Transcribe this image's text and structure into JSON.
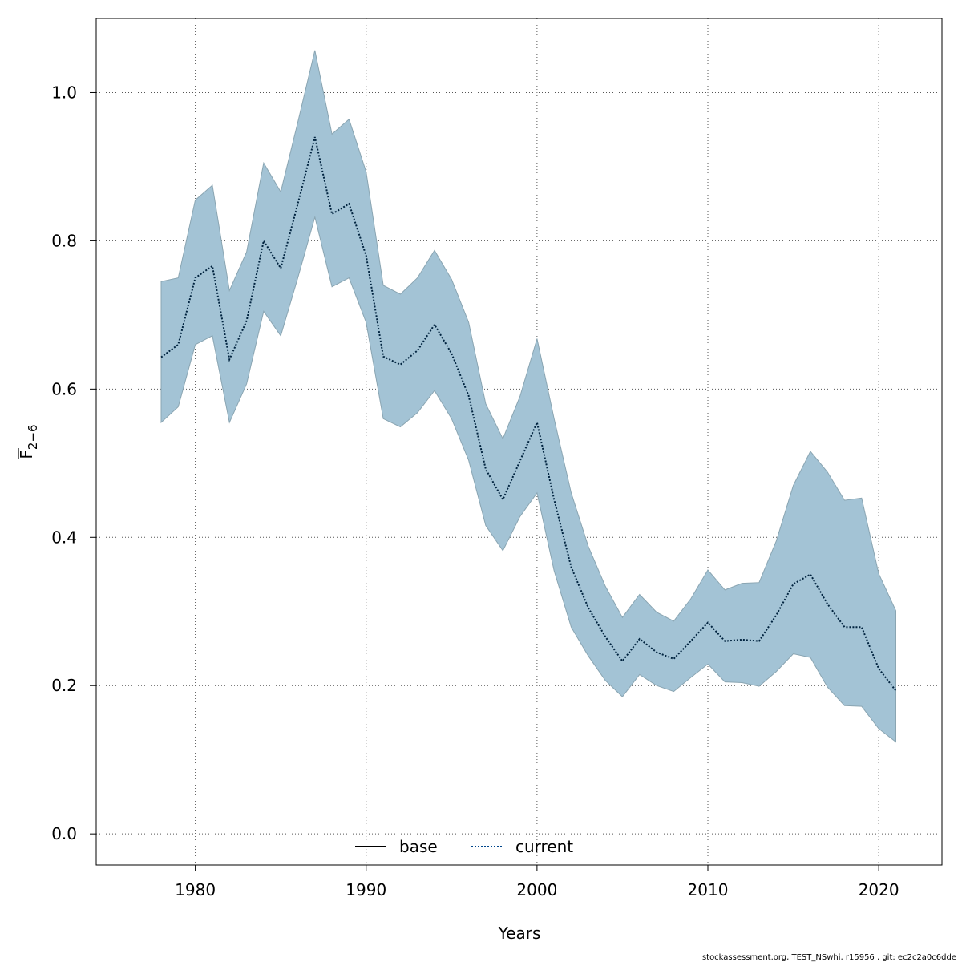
{
  "chart_data": {
    "type": "line",
    "title": "",
    "xlabel": "Years",
    "ylabel_main": "F",
    "ylabel_sub": "2−6",
    "xlim": [
      1974.2,
      2023.7
    ],
    "ylim": [
      -0.042,
      1.1
    ],
    "xticks": [
      1980,
      1990,
      2000,
      2010,
      2020
    ],
    "yticks": [
      0.0,
      0.2,
      0.4,
      0.6,
      0.8,
      1.0
    ],
    "ytick_labels": [
      "0.0",
      "0.2",
      "0.4",
      "0.6",
      "0.8",
      "1.0"
    ],
    "grid": true,
    "legend": {
      "placement": "bottom-center",
      "entries": [
        {
          "name": "base",
          "style": "solid",
          "color": "#000000"
        },
        {
          "name": "current",
          "style": "dotted",
          "color": "#00468b"
        }
      ]
    },
    "x": [
      1978,
      1979,
      1980,
      1981,
      1982,
      1983,
      1984,
      1985,
      1986,
      1987,
      1988,
      1989,
      1990,
      1991,
      1992,
      1993,
      1994,
      1995,
      1996,
      1997,
      1998,
      1999,
      2000,
      2001,
      2002,
      2003,
      2004,
      2005,
      2006,
      2007,
      2008,
      2009,
      2010,
      2011,
      2012,
      2013,
      2014,
      2015,
      2016,
      2017,
      2018,
      2019,
      2020,
      2021
    ],
    "series": [
      {
        "name": "current",
        "values": [
          0.643,
          0.66,
          0.75,
          0.766,
          0.64,
          0.692,
          0.8,
          0.763,
          0.85,
          0.94,
          0.836,
          0.85,
          0.78,
          0.644,
          0.633,
          0.652,
          0.687,
          0.648,
          0.591,
          0.492,
          0.451,
          0.503,
          0.555,
          0.451,
          0.36,
          0.305,
          0.266,
          0.233,
          0.263,
          0.245,
          0.236,
          0.26,
          0.285,
          0.26,
          0.262,
          0.26,
          0.295,
          0.337,
          0.35,
          0.31,
          0.279,
          0.279,
          0.223,
          0.193
        ],
        "lower": [
          0.555,
          0.576,
          0.66,
          0.672,
          0.555,
          0.607,
          0.705,
          0.672,
          0.75,
          0.832,
          0.738,
          0.75,
          0.69,
          0.56,
          0.549,
          0.568,
          0.598,
          0.56,
          0.504,
          0.416,
          0.382,
          0.428,
          0.46,
          0.355,
          0.279,
          0.24,
          0.207,
          0.185,
          0.215,
          0.2,
          0.192,
          0.211,
          0.229,
          0.205,
          0.204,
          0.199,
          0.219,
          0.243,
          0.238,
          0.198,
          0.173,
          0.172,
          0.142,
          0.124
        ],
        "upper": [
          0.745,
          0.75,
          0.855,
          0.875,
          0.733,
          0.785,
          0.905,
          0.866,
          0.96,
          1.057,
          0.944,
          0.964,
          0.893,
          0.74,
          0.728,
          0.75,
          0.787,
          0.748,
          0.69,
          0.58,
          0.533,
          0.59,
          0.668,
          0.56,
          0.46,
          0.388,
          0.334,
          0.292,
          0.323,
          0.299,
          0.287,
          0.317,
          0.356,
          0.329,
          0.338,
          0.339,
          0.395,
          0.47,
          0.516,
          0.488,
          0.45,
          0.453,
          0.351,
          0.301
        ]
      }
    ],
    "colors": {
      "band_fill": "#a3c3d5",
      "band_edge": "#8aa5b2",
      "current_line": "#00233f",
      "base_line": "#000000"
    },
    "footer": "stockassessment.org, TEST_NSwhi, r15956 , git: ec2c2a0c6dde"
  }
}
